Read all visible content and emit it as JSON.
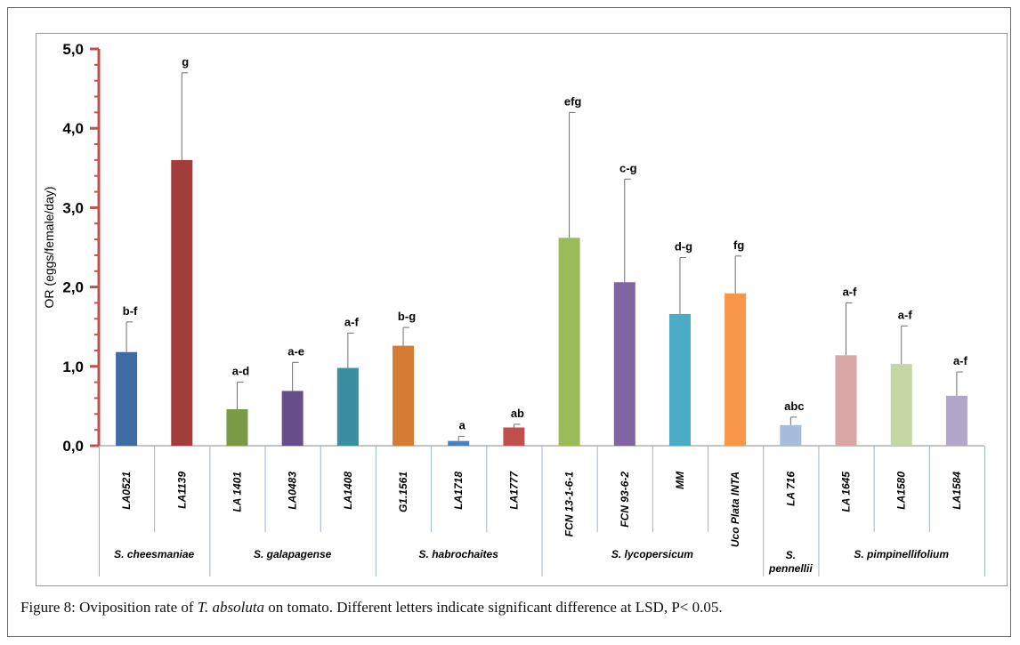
{
  "chart_data": {
    "type": "bar",
    "ylabel": "OR (eggs/female/day)",
    "ylim": [
      0,
      5
    ],
    "y_ticks": [
      "0,0",
      "1,0",
      "2,0",
      "3,0",
      "4,0",
      "5,0"
    ],
    "grid": false,
    "categories": [
      "LA0521",
      "LA1139",
      "LA 1401",
      "LA0483",
      "LA1408",
      "G1.1561",
      "LA1718",
      "LA1777",
      "FCN 13-1-6-1",
      "FCN 93-6-2",
      "MM",
      "Uco Plata INTA",
      "LA 716",
      "LA 1645",
      "LA1580",
      "LA1584"
    ],
    "values": [
      1.18,
      3.6,
      0.46,
      0.69,
      0.98,
      1.26,
      0.06,
      0.23,
      2.62,
      2.06,
      1.66,
      1.92,
      0.26,
      1.14,
      1.03,
      0.63
    ],
    "error_upper": [
      1.56,
      4.7,
      0.8,
      1.05,
      1.42,
      1.49,
      0.12,
      0.27,
      4.2,
      3.36,
      2.37,
      2.39,
      0.36,
      1.8,
      1.51,
      0.93
    ],
    "significance": [
      "b-f",
      "g",
      "a-d",
      "a-e",
      "a-f",
      "b-g",
      "a",
      "ab",
      "efg",
      "c-g",
      "d-g",
      "fg",
      "abc",
      "a-f",
      "a-f",
      "a-f"
    ],
    "colors": [
      "#3f6ba3",
      "#a23d3b",
      "#7a9a45",
      "#654e8a",
      "#3a8ea0",
      "#d47c36",
      "#4a7fc0",
      "#c0504d",
      "#9bbb59",
      "#8064a2",
      "#4bacc6",
      "#f79646",
      "#a6bcdb",
      "#d9a5a5",
      "#c3d6a4",
      "#b3a6cb"
    ],
    "groups": [
      {
        "name": "S. cheesmaniae",
        "start": 0,
        "end": 1
      },
      {
        "name": "S. galapagense",
        "start": 2,
        "end": 4
      },
      {
        "name": "S. habrochaites",
        "start": 5,
        "end": 7
      },
      {
        "name": "S. lycopersicum",
        "start": 8,
        "end": 11
      },
      {
        "name": "S. pennellii",
        "start": 12,
        "end": 12
      },
      {
        "name": "S. pimpinellifolium",
        "start": 13,
        "end": 15
      }
    ]
  },
  "caption": {
    "label": "Figure 8:",
    "text_before": " Oviposition rate of ",
    "species": "T. absoluta",
    "text_after": " on tomato. Different letters indicate significant difference at LSD, P< 0.05."
  },
  "axis_color": "#c0504d"
}
